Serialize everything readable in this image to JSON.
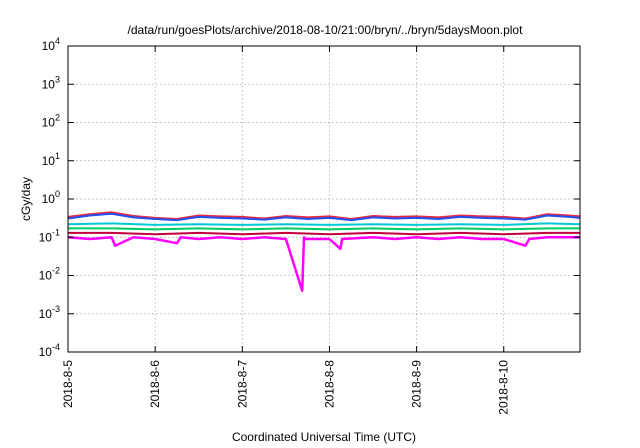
{
  "chart_data": {
    "type": "line",
    "title": "/data/run/goesPlots/archive/2018-08-10/21:00/bryn/../bryn/5daysMoon.plot",
    "xlabel": "Coordinated Universal Time (UTC)",
    "ylabel": "cGy/day",
    "yscale": "log",
    "ylim": [
      0.0001,
      10000
    ],
    "y_ticks": [
      {
        "base": "10",
        "exp": "4"
      },
      {
        "base": "10",
        "exp": "3"
      },
      {
        "base": "10",
        "exp": "2"
      },
      {
        "base": "10",
        "exp": "1"
      },
      {
        "base": "10",
        "exp": "0"
      },
      {
        "base": "10",
        "exp": "-1"
      },
      {
        "base": "10",
        "exp": "-2"
      },
      {
        "base": "10",
        "exp": "-3"
      },
      {
        "base": "10",
        "exp": "-4"
      }
    ],
    "xlim": [
      "2018-08-05",
      "2018-08-10T21:00"
    ],
    "x_ticks": [
      "2018-8-5",
      "2018-8-6",
      "2018-8-7",
      "2018-8-8",
      "2018-8-9",
      "2018-8-10"
    ],
    "grid": true,
    "legend": "none",
    "series": [
      {
        "color": "#ff00ff",
        "x": [
          "2018-08-05T00:00",
          "2018-08-05T06:00",
          "2018-08-05T12:00",
          "2018-08-05T13:00",
          "2018-08-05T18:00",
          "2018-08-06T00:00",
          "2018-08-06T06:00",
          "2018-08-06T07:00",
          "2018-08-06T12:00",
          "2018-08-06T18:00",
          "2018-08-07T00:00",
          "2018-08-07T06:00",
          "2018-08-07T12:00",
          "2018-08-07T16:30",
          "2018-08-07T17:00",
          "2018-08-07T17:30",
          "2018-08-08T00:00",
          "2018-08-08T03:00",
          "2018-08-08T03:30",
          "2018-08-08T12:00",
          "2018-08-08T18:00",
          "2018-08-09T00:00",
          "2018-08-09T06:00",
          "2018-08-09T12:00",
          "2018-08-09T18:00",
          "2018-08-10T00:00",
          "2018-08-10T06:00",
          "2018-08-10T07:00",
          "2018-08-10T12:00",
          "2018-08-10T21:00"
        ],
        "y": [
          0.1,
          0.09,
          0.1,
          0.06,
          0.1,
          0.09,
          0.07,
          0.1,
          0.09,
          0.1,
          0.09,
          0.1,
          0.09,
          0.004,
          0.1,
          0.09,
          0.09,
          0.05,
          0.09,
          0.1,
          0.09,
          0.1,
          0.09,
          0.1,
          0.09,
          0.09,
          0.06,
          0.09,
          0.1,
          0.1
        ]
      },
      {
        "color": "#c0003a",
        "x": [
          "2018-08-05T00:00",
          "2018-08-05T12:00",
          "2018-08-06T00:00",
          "2018-08-06T12:00",
          "2018-08-07T00:00",
          "2018-08-07T12:00",
          "2018-08-08T00:00",
          "2018-08-08T12:00",
          "2018-08-09T00:00",
          "2018-08-09T12:00",
          "2018-08-10T00:00",
          "2018-08-10T12:00",
          "2018-08-10T21:00"
        ],
        "y": [
          0.13,
          0.13,
          0.12,
          0.13,
          0.12,
          0.13,
          0.12,
          0.13,
          0.12,
          0.13,
          0.12,
          0.13,
          0.13
        ]
      },
      {
        "color": "#00cc66",
        "x": [
          "2018-08-05T00:00",
          "2018-08-05T12:00",
          "2018-08-06T00:00",
          "2018-08-06T12:00",
          "2018-08-07T00:00",
          "2018-08-07T12:00",
          "2018-08-08T00:00",
          "2018-08-08T12:00",
          "2018-08-09T00:00",
          "2018-08-09T12:00",
          "2018-08-10T00:00",
          "2018-08-10T12:00",
          "2018-08-10T21:00"
        ],
        "y": [
          0.17,
          0.17,
          0.16,
          0.17,
          0.16,
          0.17,
          0.16,
          0.17,
          0.16,
          0.17,
          0.16,
          0.17,
          0.17
        ]
      },
      {
        "color": "#00c8d8",
        "x": [
          "2018-08-05T00:00",
          "2018-08-05T12:00",
          "2018-08-06T00:00",
          "2018-08-06T12:00",
          "2018-08-07T00:00",
          "2018-08-07T12:00",
          "2018-08-08T00:00",
          "2018-08-08T12:00",
          "2018-08-09T00:00",
          "2018-08-09T12:00",
          "2018-08-10T00:00",
          "2018-08-10T12:00",
          "2018-08-10T21:00"
        ],
        "y": [
          0.22,
          0.23,
          0.21,
          0.22,
          0.21,
          0.22,
          0.21,
          0.22,
          0.21,
          0.22,
          0.21,
          0.23,
          0.22
        ]
      },
      {
        "color": "#e8283c",
        "x": [
          "2018-08-05T00:00",
          "2018-08-05T06:00",
          "2018-08-05T12:00",
          "2018-08-05T18:00",
          "2018-08-06T00:00",
          "2018-08-06T06:00",
          "2018-08-06T12:00",
          "2018-08-06T18:00",
          "2018-08-07T00:00",
          "2018-08-07T06:00",
          "2018-08-07T12:00",
          "2018-08-07T18:00",
          "2018-08-08T00:00",
          "2018-08-08T06:00",
          "2018-08-08T12:00",
          "2018-08-08T18:00",
          "2018-08-09T00:00",
          "2018-08-09T06:00",
          "2018-08-09T12:00",
          "2018-08-09T18:00",
          "2018-08-10T00:00",
          "2018-08-10T06:00",
          "2018-08-10T12:00",
          "2018-08-10T18:00",
          "2018-08-10T21:00"
        ],
        "y": [
          0.34,
          0.4,
          0.45,
          0.36,
          0.32,
          0.3,
          0.37,
          0.35,
          0.34,
          0.31,
          0.36,
          0.33,
          0.35,
          0.3,
          0.36,
          0.34,
          0.35,
          0.33,
          0.37,
          0.35,
          0.34,
          0.31,
          0.4,
          0.37,
          0.35
        ]
      },
      {
        "color": "#2050f0",
        "x": [
          "2018-08-05T00:00",
          "2018-08-05T06:00",
          "2018-08-05T12:00",
          "2018-08-05T18:00",
          "2018-08-06T00:00",
          "2018-08-06T06:00",
          "2018-08-06T12:00",
          "2018-08-06T18:00",
          "2018-08-07T00:00",
          "2018-08-07T06:00",
          "2018-08-07T12:00",
          "2018-08-07T18:00",
          "2018-08-08T00:00",
          "2018-08-08T06:00",
          "2018-08-08T12:00",
          "2018-08-08T18:00",
          "2018-08-09T00:00",
          "2018-08-09T06:00",
          "2018-08-09T12:00",
          "2018-08-09T18:00",
          "2018-08-10T00:00",
          "2018-08-10T06:00",
          "2018-08-10T12:00",
          "2018-08-10T18:00",
          "2018-08-10T21:00"
        ],
        "y": [
          0.31,
          0.37,
          0.41,
          0.33,
          0.3,
          0.28,
          0.34,
          0.32,
          0.31,
          0.29,
          0.33,
          0.3,
          0.32,
          0.28,
          0.33,
          0.31,
          0.32,
          0.3,
          0.34,
          0.32,
          0.31,
          0.29,
          0.37,
          0.34,
          0.32
        ]
      }
    ]
  }
}
